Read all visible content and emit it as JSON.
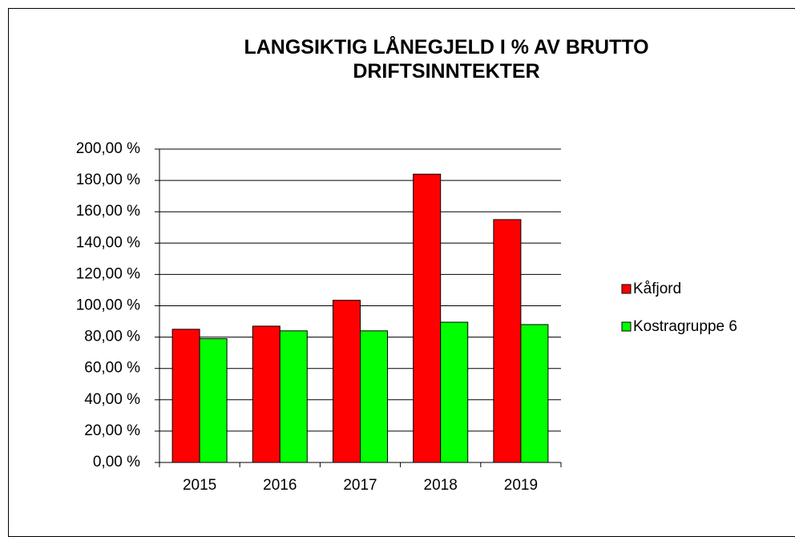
{
  "chart_data": {
    "type": "bar",
    "title": "LANGSIKTIG LÅNEGJELD I % AV BRUTTO DRIFTSINNTEKTER",
    "categories": [
      "2015",
      "2016",
      "2017",
      "2018",
      "2019"
    ],
    "series": [
      {
        "name": "Kåfjord",
        "color": "#ff0000",
        "values": [
          85,
          87,
          103.5,
          184,
          155
        ]
      },
      {
        "name": "Kostragruppe 6",
        "color": "#00ff00",
        "values": [
          79,
          84,
          84,
          89.5,
          88
        ]
      }
    ],
    "ylim": [
      0,
      200
    ],
    "yticks": [
      {
        "value": 0,
        "label": "0,00 %"
      },
      {
        "value": 20,
        "label": "20,00 %"
      },
      {
        "value": 40,
        "label": "40,00 %"
      },
      {
        "value": 60,
        "label": "60,00 %"
      },
      {
        "value": 80,
        "label": "80,00 %"
      },
      {
        "value": 100,
        "label": "100,00 %"
      },
      {
        "value": 120,
        "label": "120,00 %"
      },
      {
        "value": 140,
        "label": "140,00 %"
      },
      {
        "value": 160,
        "label": "160,00 %"
      },
      {
        "value": 180,
        "label": "180,00 %"
      },
      {
        "value": 200,
        "label": "200,00 %"
      }
    ],
    "grid": true,
    "legend": "right"
  }
}
